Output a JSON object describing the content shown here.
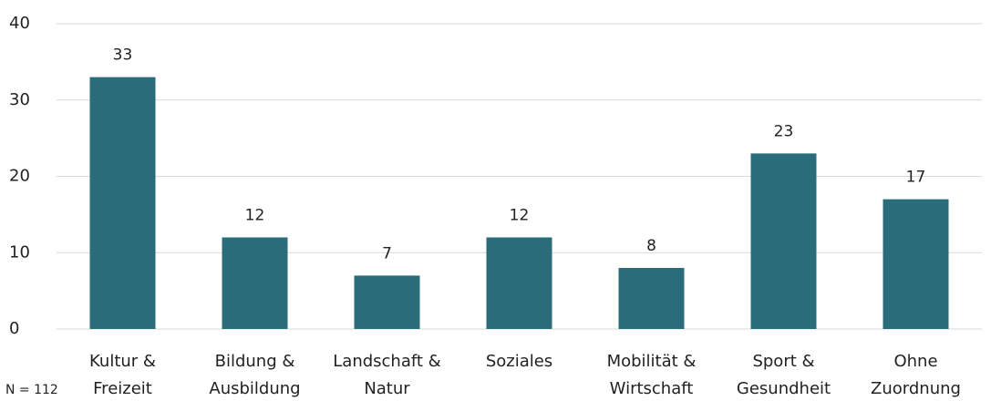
{
  "chart_data": {
    "type": "bar",
    "categories": [
      "Kultur & Freizeit",
      "Bildung & Ausbildung",
      "Landschaft & Natur",
      "Soziales",
      "Mobilität & Wirtschaft",
      "Sport & Gesundheit",
      "Ohne Zuordnung"
    ],
    "values": [
      33,
      12,
      7,
      12,
      8,
      23,
      17
    ],
    "color": "#2b6c7b",
    "ylim": [
      0,
      40
    ],
    "yticks": [
      0,
      10,
      20,
      30,
      40
    ],
    "grid": true,
    "note": "N = 112"
  }
}
